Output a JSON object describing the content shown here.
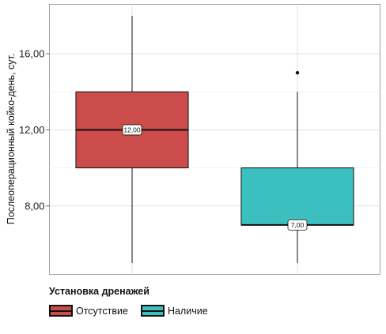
{
  "chart_data": {
    "type": "boxplot",
    "ylabel": "Послеоперационный койко-день, сут.",
    "y_tick_labels": [
      "8,00",
      "12,00",
      "16,00"
    ],
    "y_ticks": [
      8,
      12,
      16
    ],
    "ylim": [
      4.4,
      18.6
    ],
    "grid": true,
    "legend": {
      "title": "Установка дренажей",
      "placement": "bottom-left"
    },
    "series": [
      {
        "name": "Отсутствие",
        "color": "#cc4b4b",
        "min": 5,
        "q1": 10,
        "median": 12,
        "q3": 14,
        "max": 18,
        "outliers": [],
        "median_label": "12,00"
      },
      {
        "name": "Наличие",
        "color": "#3cbfbf",
        "min": 5,
        "q1": 7,
        "median": 7,
        "q3": 10,
        "max": 14,
        "outliers": [
          15
        ],
        "median_label": "7,00"
      }
    ]
  }
}
